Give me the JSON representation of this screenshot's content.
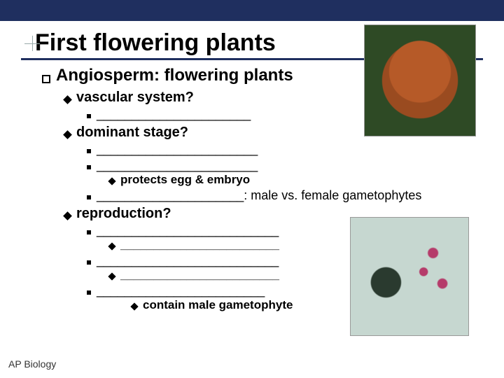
{
  "slide": {
    "title": "First flowering plants",
    "footer": "AP Biology",
    "colors": {
      "bar": "#1f2f5f",
      "text": "#000000",
      "bg": "#ffffff"
    }
  },
  "bullets": {
    "l1": "Angiosperm: flowering plants",
    "vascular": {
      "label": "vascular system?",
      "blank1": "______________________"
    },
    "dominant": {
      "label": "dominant stage?",
      "blank1": "_______________________",
      "blank2": "_______________________",
      "sub_protects": "protects egg & embryo",
      "blank3_prefix": "_____________________",
      "blank3_suffix": ": male vs. female gametophytes"
    },
    "repro": {
      "label": "reproduction?",
      "blank1": "__________________________",
      "sub1": "________________________",
      "blank2": "__________________________",
      "sub2": "________________________",
      "blank3": "________________________",
      "sub_contain": "contain male gametophyte"
    }
  },
  "images": {
    "top_right": "orangutan-photo",
    "bottom_right": "hummingbird-flower-photo"
  }
}
